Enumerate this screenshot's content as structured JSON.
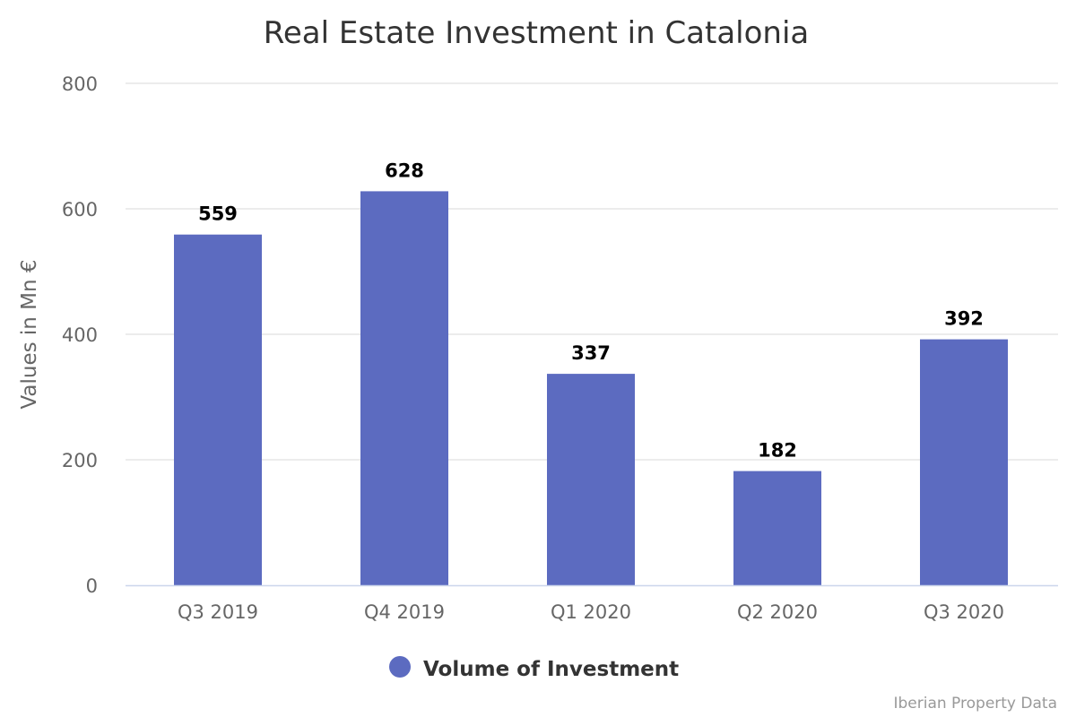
{
  "chart_data": {
    "type": "bar",
    "title": "Real Estate Investment in Catalonia",
    "ylabel": "Values in Mn €",
    "xlabel": "",
    "categories": [
      "Q3 2019",
      "Q4 2019",
      "Q1 2020",
      "Q2 2020",
      "Q3 2020"
    ],
    "series": [
      {
        "name": "Volume of Investment",
        "values": [
          559,
          628,
          337,
          182,
          392
        ],
        "color": "#5c6bc0"
      }
    ],
    "data_labels": [
      "559",
      "628",
      "337",
      "182",
      "392"
    ],
    "y_ticks": [
      "0",
      "200",
      "400",
      "600",
      "800"
    ],
    "ylim": [
      0,
      800
    ],
    "grid": true,
    "legend_position": "bottom-center"
  },
  "credits": "Iberian Property Data",
  "colors": {
    "bar": "#5c6bc0",
    "grid": "#e6e6e6",
    "axis_line": "#ccd6eb"
  }
}
